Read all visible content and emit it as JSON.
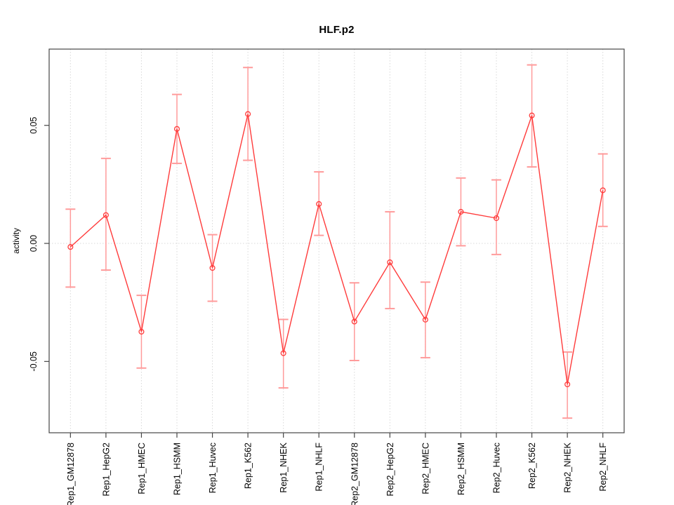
{
  "chart_data": {
    "type": "line",
    "title": "HLF.p2",
    "ylabel": "activity",
    "xlabel": "",
    "marker": "open-circle",
    "error_bars": true,
    "categories": [
      "Rep1_GM12878",
      "Rep1_HepG2",
      "Rep1_HMEC",
      "Rep1_HSMM",
      "Rep1_Huvec",
      "Rep1_K562",
      "Rep1_NHEK",
      "Rep1_NHLF",
      "Rep2_GM12878",
      "Rep2_HepG2",
      "Rep2_HMEC",
      "Rep2_HSMM",
      "Rep2_Huvec",
      "Rep2_K562",
      "Rep2_NHEK",
      "Rep2_NHLF"
    ],
    "series": [
      {
        "name": "activity",
        "values": [
          -0.0015,
          0.012,
          -0.0374,
          0.0485,
          -0.0104,
          0.0548,
          -0.0465,
          0.0167,
          -0.0331,
          -0.008,
          -0.0323,
          0.0134,
          0.0107,
          0.0542,
          -0.0597,
          0.0225
        ],
        "err_high": [
          0.0145,
          0.036,
          -0.022,
          0.0631,
          0.0037,
          0.0745,
          -0.0322,
          0.0303,
          -0.0167,
          0.0134,
          -0.0164,
          0.0277,
          0.0269,
          0.0756,
          -0.046,
          0.0379
        ],
        "err_low": [
          -0.0185,
          -0.0113,
          -0.0528,
          0.0339,
          -0.0245,
          0.0352,
          -0.0612,
          0.0034,
          -0.0496,
          -0.0276,
          -0.0484,
          -0.001,
          -0.0047,
          0.0324,
          -0.074,
          0.0072
        ]
      }
    ],
    "yticks": [
      -0.05,
      0.0,
      0.05
    ],
    "ytick_labels": [
      "-0.05",
      "0.00",
      "0.05"
    ],
    "ylim": [
      -0.0802,
      0.0823
    ],
    "xlim": [
      0.4,
      16.6
    ],
    "grid": {
      "vertical_at_categories": true,
      "horizontal_at_zero": true,
      "style": "dotted"
    },
    "legend": "none",
    "colors": {
      "line": "#ff3b3b",
      "marker": "#ff3b3b",
      "whisker": "#ff9b9b",
      "grid": "#d8d8d8",
      "axis": "#454545",
      "text": "#000000",
      "background": "#ffffff"
    }
  }
}
